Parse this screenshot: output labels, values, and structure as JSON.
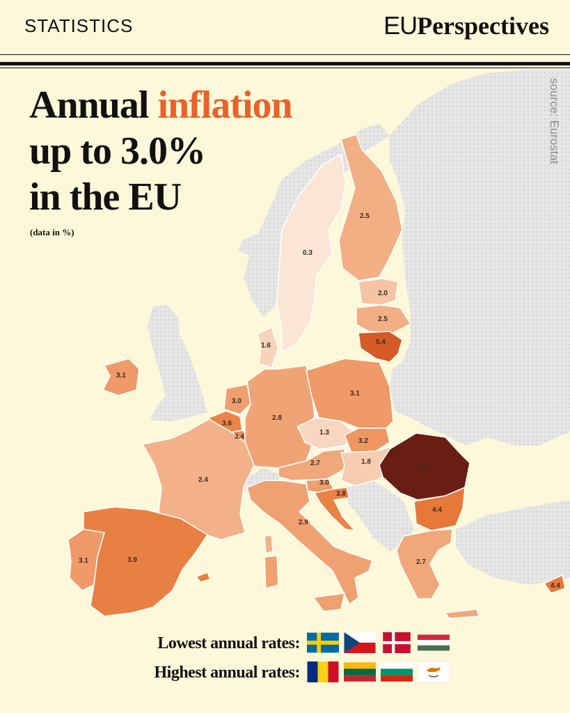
{
  "header": {
    "section": "STATISTICS",
    "brand_eu": "EU",
    "brand_rest": "Perspectives"
  },
  "title": {
    "line1_a": "Annual ",
    "line1_b": "inflation",
    "line2": "up to 3.0%",
    "line3": "in the EU"
  },
  "subtitle": "(data in %)",
  "source": "source: Eurostat",
  "colors": {
    "background": "#fdf8d9",
    "accent": "#e8622a",
    "non_eu": "#e4e4e4"
  },
  "countries": [
    {
      "name": "sweden",
      "value": "0.3",
      "fill": "#fbe6d6"
    },
    {
      "name": "finland",
      "value": "2.5",
      "fill": "#f2af84"
    },
    {
      "name": "estonia",
      "value": "2.0",
      "fill": "#f6c4a4"
    },
    {
      "name": "latvia",
      "value": "2.5",
      "fill": "#f2af84"
    },
    {
      "name": "lithuania",
      "value": "5.4",
      "fill": "#d65a26"
    },
    {
      "name": "denmark",
      "value": "1.6",
      "fill": "#f8d3bb"
    },
    {
      "name": "ireland",
      "value": "3.1",
      "fill": "#ef9a68"
    },
    {
      "name": "netherlands",
      "value": "3.0",
      "fill": "#ef9e6d"
    },
    {
      "name": "belgium",
      "value": "3.6",
      "fill": "#e98549"
    },
    {
      "name": "luxembourg",
      "value": "3.4",
      "fill": "#eb8c52"
    },
    {
      "name": "germany",
      "value": "2.8",
      "fill": "#f0a476"
    },
    {
      "name": "poland",
      "value": "3.1",
      "fill": "#ef9a68"
    },
    {
      "name": "czechia",
      "value": "1.3",
      "fill": "#f8d6bf"
    },
    {
      "name": "slovakia",
      "value": "3.2",
      "fill": "#ee9661"
    },
    {
      "name": "austria",
      "value": "2.7",
      "fill": "#f0a77a"
    },
    {
      "name": "hungary",
      "value": "1.8",
      "fill": "#f7ccb0"
    },
    {
      "name": "romania",
      "value": "8.2",
      "fill": "#6a1d12"
    },
    {
      "name": "slovenia",
      "value": "3.0",
      "fill": "#ef9e6d"
    },
    {
      "name": "croatia",
      "value": "3.8",
      "fill": "#e98245"
    },
    {
      "name": "bulgaria",
      "value": "4.4",
      "fill": "#e6783a"
    },
    {
      "name": "france",
      "value": "2.4",
      "fill": "#f3b189"
    },
    {
      "name": "italy",
      "value": "2.9",
      "fill": "#f0a171"
    },
    {
      "name": "greece",
      "value": "2.7",
      "fill": "#f0a77a"
    },
    {
      "name": "portugal",
      "value": "3.1",
      "fill": "#ef9a68"
    },
    {
      "name": "spain",
      "value": "3.9",
      "fill": "#e98043"
    },
    {
      "name": "cyprus",
      "value": "4.4",
      "fill": "#e6783a"
    }
  ],
  "legend": {
    "lowest_label": "Lowest annual rates:",
    "lowest_flags": [
      "sweden-flag",
      "czechia-flag",
      "denmark-flag",
      "hungary-flag"
    ],
    "highest_label": "Highest annual rates:",
    "highest_flags": [
      "romania-flag",
      "lithuania-flag",
      "bulgaria-flag",
      "cyprus-flag"
    ]
  }
}
